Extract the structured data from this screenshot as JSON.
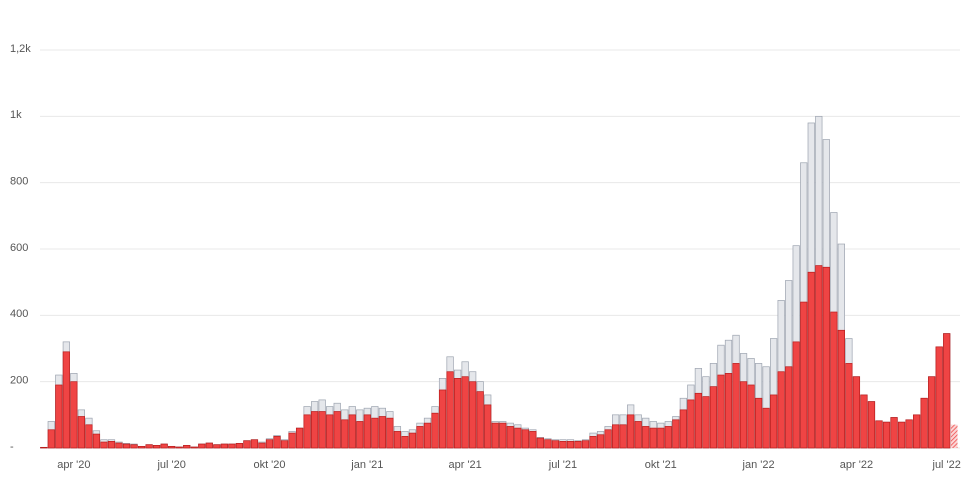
{
  "chart_data": {
    "type": "bar",
    "categories": [
      null,
      null,
      null,
      null,
      "apr '20",
      null,
      null,
      null,
      null,
      null,
      null,
      null,
      null,
      null,
      null,
      null,
      null,
      "jul '20",
      null,
      null,
      null,
      null,
      null,
      null,
      null,
      null,
      null,
      null,
      null,
      null,
      "okt '20",
      null,
      null,
      null,
      null,
      null,
      null,
      null,
      null,
      null,
      null,
      null,
      null,
      "jan '21",
      null,
      null,
      null,
      null,
      null,
      null,
      null,
      null,
      null,
      null,
      null,
      null,
      "apr '21",
      null,
      null,
      null,
      null,
      null,
      null,
      null,
      null,
      null,
      null,
      null,
      null,
      "jul '21",
      null,
      null,
      null,
      null,
      null,
      null,
      null,
      null,
      null,
      null,
      null,
      null,
      "okt '21",
      null,
      null,
      null,
      null,
      null,
      null,
      null,
      null,
      null,
      null,
      null,
      null,
      "jan '22",
      null,
      null,
      null,
      null,
      null,
      null,
      null,
      null,
      null,
      null,
      null,
      null,
      "apr '22",
      null,
      null,
      null,
      null,
      null,
      null,
      null,
      null,
      null,
      null,
      null,
      "jul '22",
      null
    ],
    "series": [
      {
        "color": "#e5e7eb",
        "values": [
          2,
          80,
          220,
          320,
          225,
          115,
          90,
          52,
          25,
          25,
          18,
          14,
          12,
          5,
          10,
          8,
          12,
          5,
          3,
          8,
          3,
          12,
          15,
          10,
          12,
          12,
          14,
          22,
          25,
          18,
          28,
          38,
          25,
          50,
          60,
          125,
          140,
          145,
          125,
          135,
          115,
          125,
          115,
          120,
          125,
          120,
          110,
          65,
          50,
          55,
          75,
          90,
          125,
          210,
          275,
          235,
          260,
          230,
          200,
          160,
          80,
          80,
          75,
          70,
          60,
          55,
          32,
          28,
          25,
          25,
          25,
          22,
          25,
          45,
          50,
          65,
          100,
          100,
          130,
          100,
          90,
          80,
          75,
          80,
          95,
          150,
          190,
          240,
          215,
          255,
          310,
          325,
          340,
          285,
          270,
          255,
          245,
          330,
          445,
          505,
          610,
          860,
          980,
          1000,
          930,
          710,
          615,
          330,
          215,
          160,
          140,
          82,
          78,
          92,
          78,
          85,
          100,
          150,
          215,
          305,
          345,
          70
        ]
      },
      {
        "color": "#ef4444",
        "values": [
          2,
          55,
          190,
          290,
          200,
          95,
          70,
          42,
          18,
          20,
          15,
          12,
          10,
          5,
          10,
          8,
          12,
          5,
          3,
          8,
          3,
          12,
          15,
          10,
          12,
          12,
          14,
          22,
          25,
          15,
          25,
          35,
          22,
          45,
          60,
          100,
          110,
          110,
          100,
          110,
          85,
          100,
          80,
          100,
          90,
          95,
          90,
          50,
          35,
          45,
          65,
          75,
          105,
          175,
          230,
          210,
          215,
          200,
          170,
          130,
          75,
          75,
          65,
          60,
          55,
          50,
          30,
          25,
          22,
          20,
          20,
          20,
          22,
          35,
          40,
          55,
          70,
          70,
          100,
          80,
          65,
          60,
          60,
          65,
          85,
          115,
          145,
          165,
          155,
          185,
          220,
          225,
          255,
          200,
          190,
          150,
          120,
          160,
          230,
          245,
          320,
          440,
          530,
          550,
          545,
          410,
          355,
          255,
          215,
          160,
          140,
          82,
          78,
          92,
          78,
          85,
          100,
          150,
          215,
          305,
          345,
          70
        ]
      }
    ],
    "ylim": [
      0,
      1200
    ],
    "yticks": [
      {
        "value": 0,
        "label": "-"
      },
      200,
      400,
      600,
      800,
      {
        "value": 1000,
        "label": "1k"
      },
      {
        "value": 1200,
        "label": "1,2k"
      }
    ],
    "grid": true
  }
}
